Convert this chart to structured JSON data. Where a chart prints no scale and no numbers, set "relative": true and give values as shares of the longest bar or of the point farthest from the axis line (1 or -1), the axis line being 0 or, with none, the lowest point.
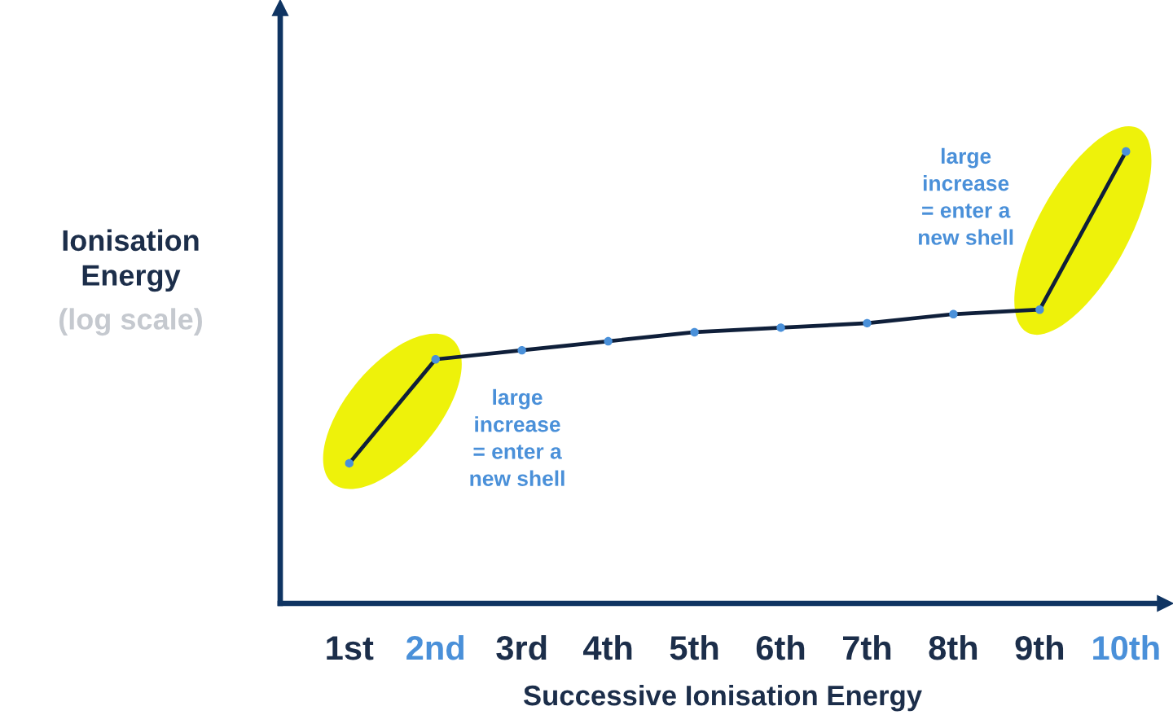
{
  "chart_data": {
    "type": "line",
    "xlabel": "Successive Ionisation Energy",
    "ylabel": "Ionisation\nEnergy",
    "categories": [
      "1st",
      "2nd",
      "3rd",
      "4th",
      "5th",
      "6th",
      "7th",
      "8th",
      "9th",
      "10th"
    ],
    "relative": true,
    "series": [
      {
        "color": "#0f1f3a",
        "colors": [
          "#4a90d9",
          "#4a90d9",
          "#4a90d9",
          "#4a90d9",
          "#4a90d9",
          "#4a90d9",
          "#4a90d9",
          "#4a90d9",
          "#4a90d9",
          "#4a90d9"
        ],
        "values": [
          0.31,
          0.54,
          0.56,
          0.58,
          0.6,
          0.61,
          0.62,
          0.64,
          0.65,
          1
        ]
      }
    ],
    "marker": "circle",
    "line_style": "solid",
    "grid": false,
    "annotations": [
      "(log scale)",
      "large\nincrease\n= enter a\nnew shell",
      "large\nincrease\n= enter a\nnew shell"
    ]
  }
}
